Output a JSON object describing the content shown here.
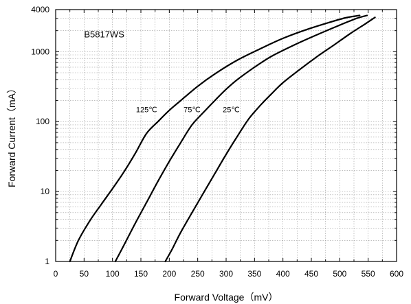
{
  "chart_data": {
    "type": "line",
    "title": "",
    "annotation": "B5817WS",
    "xlabel": "Forward Voltage（mV）",
    "ylabel": "Forward Current（mA）",
    "xlim": [
      0,
      600
    ],
    "ylim": [
      1,
      4000
    ],
    "yscale": "log",
    "grid": true,
    "x_ticks": [
      0,
      50,
      100,
      150,
      200,
      250,
      300,
      350,
      400,
      450,
      500,
      550,
      600
    ],
    "y_ticks": [
      1,
      10,
      100,
      1000,
      4000
    ],
    "series": [
      {
        "name": "125℃",
        "label_at": [
          160,
          150
        ],
        "x": [
          25,
          40,
          60,
          80,
          100,
          120,
          140,
          160,
          180,
          200,
          220,
          250,
          280,
          320,
          360,
          400,
          440,
          480,
          510,
          535
        ],
        "y": [
          1,
          2,
          3.8,
          6.5,
          11,
          19,
          35,
          68,
          100,
          145,
          200,
          320,
          480,
          760,
          1100,
          1550,
          2050,
          2600,
          3050,
          3300
        ]
      },
      {
        "name": "75℃",
        "label_at": [
          240,
          150
        ],
        "x": [
          105,
          120,
          140,
          160,
          180,
          200,
          220,
          240,
          260,
          280,
          300,
          320,
          350,
          380,
          420,
          460,
          500,
          530,
          548
        ],
        "y": [
          1,
          1.7,
          3.5,
          7,
          14,
          27,
          50,
          90,
          135,
          200,
          290,
          400,
          600,
          860,
          1250,
          1750,
          2400,
          3000,
          3300
        ]
      },
      {
        "name": "25℃",
        "label_at": [
          309,
          150
        ],
        "x": [
          193,
          205,
          220,
          240,
          260,
          280,
          300,
          320,
          340,
          360,
          380,
          400,
          430,
          460,
          490,
          520,
          545,
          562
        ],
        "y": [
          1,
          1.5,
          2.6,
          5,
          9.5,
          18,
          34,
          62,
          110,
          170,
          250,
          360,
          560,
          850,
          1250,
          1850,
          2500,
          3100
        ]
      }
    ]
  }
}
